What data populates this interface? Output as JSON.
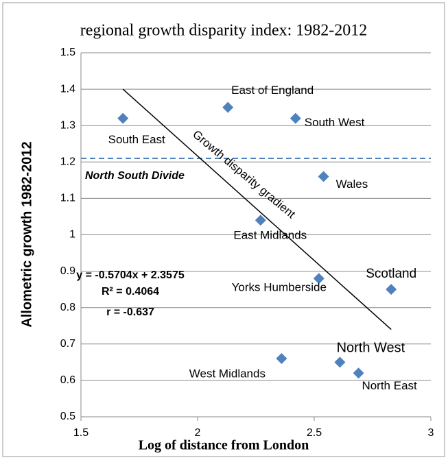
{
  "chart_data": {
    "type": "scatter",
    "title": "regional growth disparity index: 1982-2012",
    "x_label": "Log of distance from London",
    "y_label": "Allometric growth 1982-2012",
    "labels": [
      "South East",
      "East of England",
      "South West",
      "Wales",
      "East Midlands",
      "Yorks Humberside",
      "Scotland",
      "West Midlands",
      "North West",
      "North East"
    ],
    "x": [
      1.68,
      2.13,
      2.42,
      2.54,
      2.27,
      2.52,
      2.83,
      2.36,
      2.61,
      2.69
    ],
    "values": [
      1.32,
      1.35,
      1.32,
      1.16,
      1.04,
      0.88,
      0.85,
      0.66,
      0.65,
      0.62
    ],
    "color": "#4f81bd",
    "xlim": [
      1.5,
      3
    ],
    "xticks": [
      1.5,
      2,
      2.5,
      3
    ],
    "ylim": [
      0.5,
      1.5
    ],
    "yticks": [
      0.5,
      0.6,
      0.7,
      0.8,
      0.9,
      1,
      1.1,
      1.2,
      1.3,
      1.4,
      1.5
    ],
    "grid": true,
    "trendline": {
      "x": [
        1.68,
        2.83
      ],
      "y": [
        1.4,
        0.74
      ],
      "color": "#000000"
    },
    "equation": [
      "y = -0.5704x + 2.3575",
      "R² = 0.4064",
      "r =  -0.637"
    ],
    "reference_line": {
      "y": 1.21,
      "label": "North South Divide",
      "color": "#4f81bd"
    },
    "gradient_label": "Growth disparity gradient",
    "gradient_color": "#ff0000"
  }
}
